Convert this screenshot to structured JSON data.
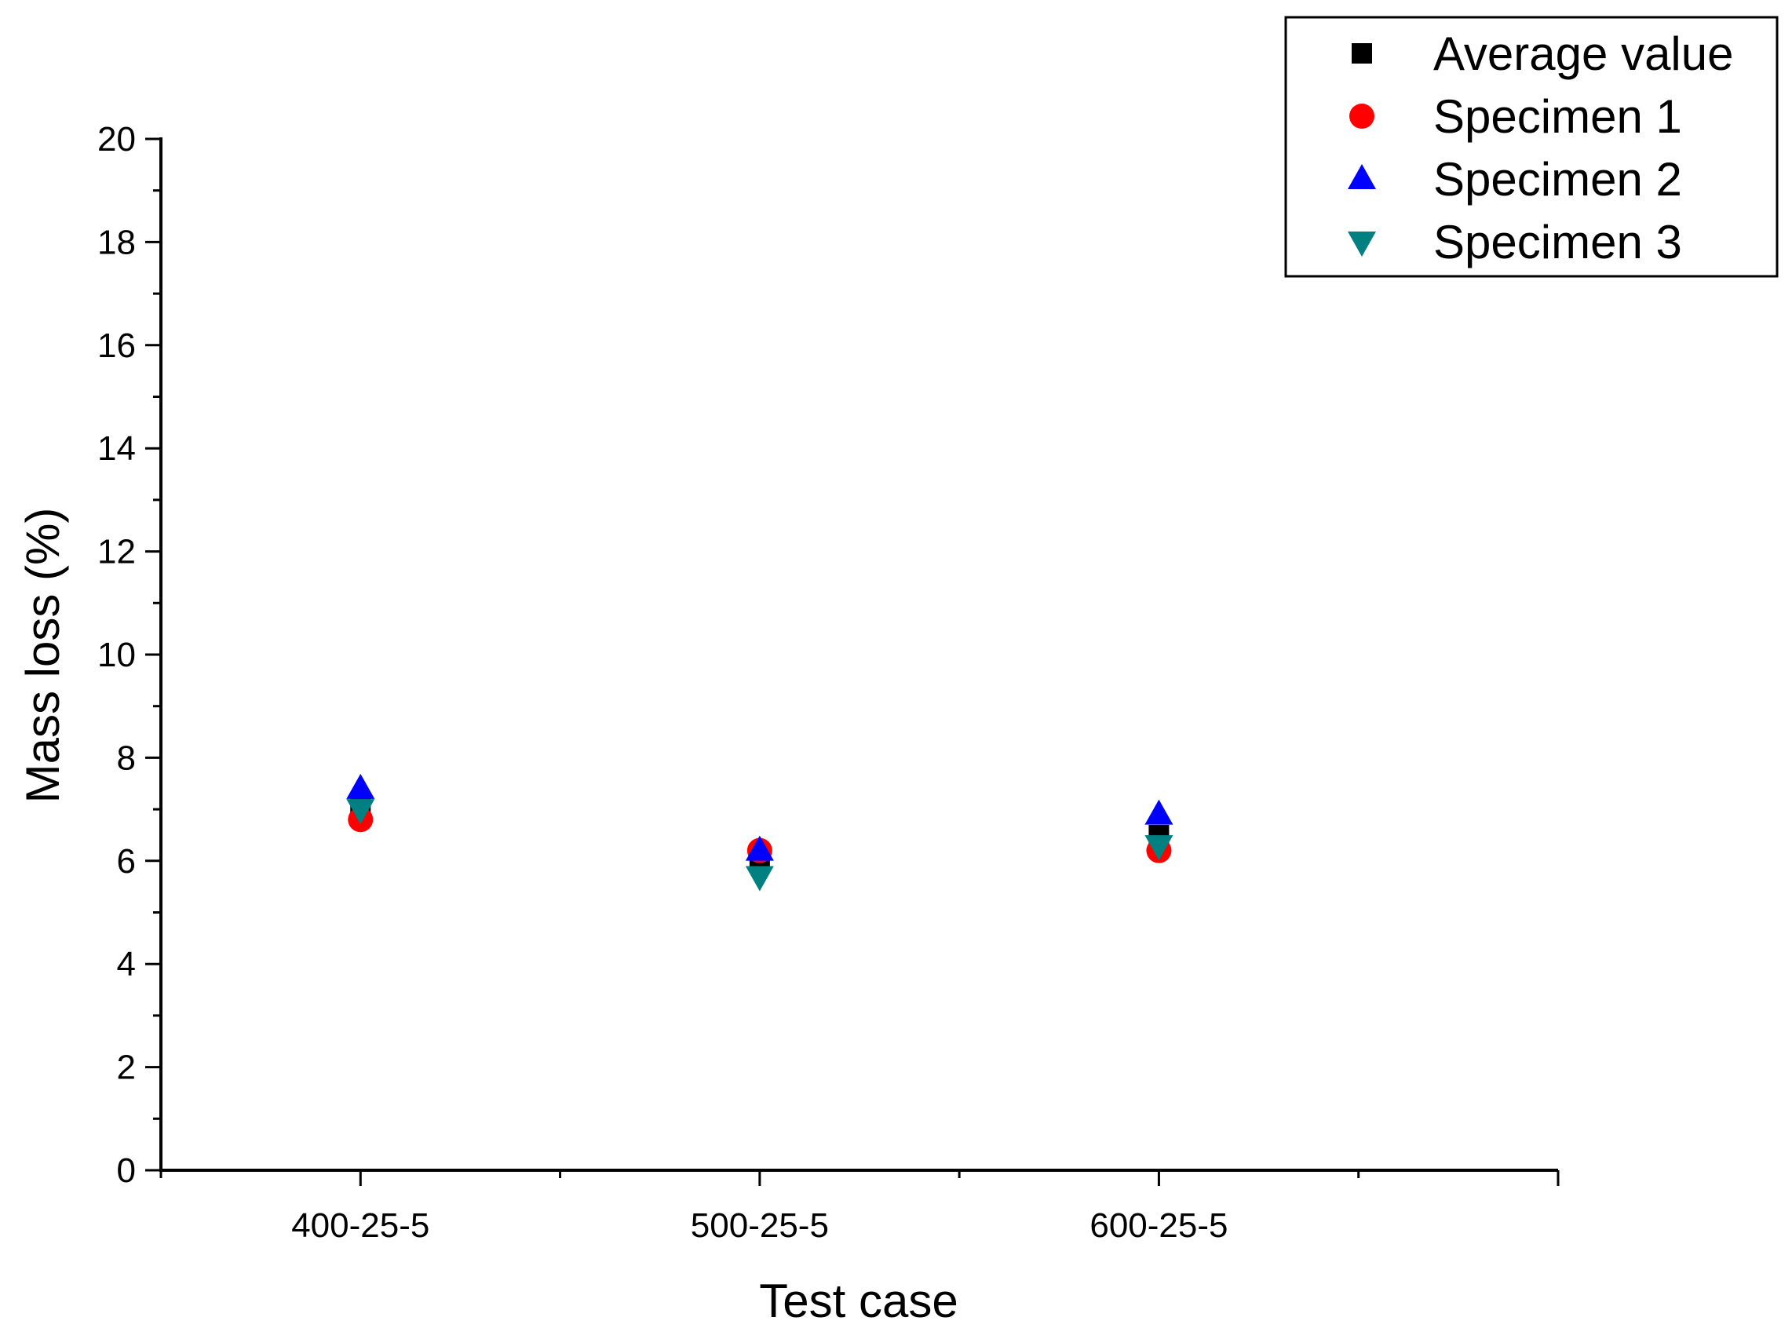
{
  "chart_data": {
    "type": "scatter",
    "title": "",
    "xlabel": "Test case",
    "ylabel": "Mass loss (%)",
    "categories": [
      "400-25-5",
      "500-25-5",
      "600-25-5"
    ],
    "ylim": [
      0,
      20
    ],
    "yticks": [
      "0",
      "2",
      "4",
      "6",
      "8",
      "10",
      "12",
      "14",
      "16",
      "18",
      "20"
    ],
    "grid": false,
    "legend_position": "top-right",
    "series": [
      {
        "name": "Average value",
        "marker": "square",
        "color": "#000000",
        "values": [
          7.1,
          6.0,
          6.5
        ]
      },
      {
        "name": "Specimen 1",
        "marker": "circle",
        "color": "#ff0000",
        "values": [
          6.8,
          6.2,
          6.2
        ]
      },
      {
        "name": "Specimen 2",
        "marker": "triangle-up",
        "color": "#0000ff",
        "values": [
          7.4,
          6.2,
          6.9
        ]
      },
      {
        "name": "Specimen 3",
        "marker": "triangle-down",
        "color": "#008080",
        "values": [
          7.0,
          5.7,
          6.3
        ]
      }
    ]
  }
}
